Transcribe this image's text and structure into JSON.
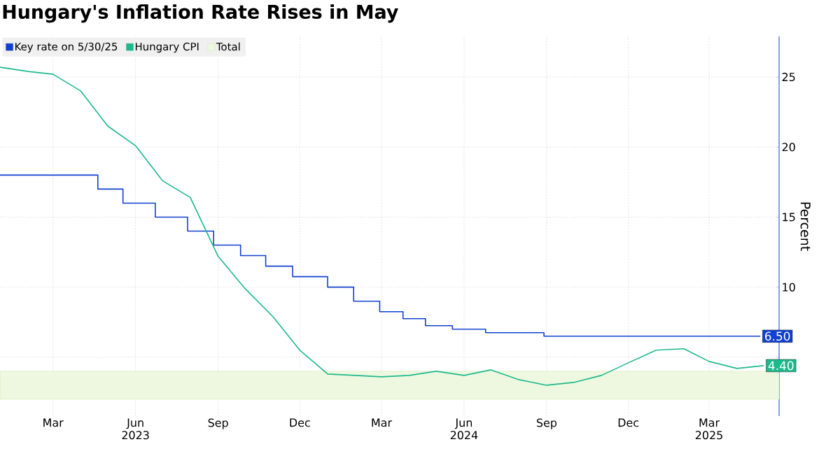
{
  "chart_data": {
    "type": "line",
    "title": "Hungary's Inflation Rate Rises in May",
    "ylabel": "Percent",
    "xlim": [
      "2023-01-01",
      "2025-05-18"
    ],
    "xticks": [
      {
        "value": "2023-03-01",
        "label": "Mar"
      },
      {
        "value": "2023-06-01",
        "label": "Jun\n2023"
      },
      {
        "value": "2023-09-01",
        "label": "Sep"
      },
      {
        "value": "2023-12-01",
        "label": "Dec"
      },
      {
        "value": "2024-03-01",
        "label": "Mar"
      },
      {
        "value": "2024-06-01",
        "label": "Jun\n2024"
      },
      {
        "value": "2024-09-01",
        "label": "Sep"
      },
      {
        "value": "2024-12-01",
        "label": "Dec"
      },
      {
        "value": "2025-03-01",
        "label": "Mar\n2025"
      }
    ],
    "ylim": [
      0.8,
      27.9
    ],
    "yticks": [
      {
        "value": 5,
        "label": null
      },
      10,
      15,
      20,
      25
    ],
    "grid": true,
    "legend": "top left",
    "bands": [
      {
        "axis": "y",
        "from": 2,
        "to": 4,
        "label": "Total",
        "color": "#eef8e0"
      }
    ],
    "series": [
      {
        "name": "Key rate on 5/30/25",
        "type": "step",
        "color": "#1040d0",
        "x": [
          "2023-01-01",
          "2023-04-20",
          "2023-05-18",
          "2023-06-23",
          "2023-07-29",
          "2023-08-27",
          "2023-09-26",
          "2023-10-24",
          "2023-11-23",
          "2024-01-01",
          "2024-01-30",
          "2024-02-28",
          "2024-03-25",
          "2024-04-19",
          "2024-05-19",
          "2024-06-25",
          "2024-08-29",
          "2025-04-27"
        ],
        "values": [
          18,
          17,
          16,
          15,
          14,
          13,
          12.25,
          11.5,
          10.75,
          10,
          9,
          8.25,
          7.75,
          7.25,
          7,
          6.75,
          6.5,
          6.5
        ],
        "value_labels": [
          null,
          null,
          null,
          null,
          null,
          null,
          null,
          null,
          null,
          null,
          null,
          null,
          null,
          null,
          null,
          null,
          null,
          "6.50"
        ]
      },
      {
        "name": "Hungary CPI",
        "color": "#1db98c",
        "x": [
          "2023-01-01",
          "2023-02-01",
          "2023-03-01",
          "2023-04-01",
          "2023-05-01",
          "2023-06-01",
          "2023-07-01",
          "2023-08-01",
          "2023-09-01",
          "2023-10-01",
          "2023-11-01",
          "2023-12-01",
          "2024-01-01",
          "2024-02-01",
          "2024-03-01",
          "2024-04-01",
          "2024-05-01",
          "2024-06-01",
          "2024-07-01",
          "2024-08-01",
          "2024-09-01",
          "2024-10-01",
          "2024-11-01",
          "2024-12-01",
          "2025-01-01",
          "2025-02-01",
          "2025-03-01",
          "2025-04-01",
          "2025-05-01"
        ],
        "values": [
          25.7,
          25.4,
          25.2,
          24.0,
          21.5,
          20.1,
          17.6,
          16.4,
          12.2,
          9.9,
          7.9,
          5.5,
          3.8,
          3.7,
          3.6,
          3.7,
          4.0,
          3.7,
          4.1,
          3.4,
          3.0,
          3.2,
          3.7,
          4.6,
          5.5,
          5.6,
          4.7,
          4.2,
          4.4
        ],
        "value_labels": [
          null,
          null,
          null,
          null,
          null,
          null,
          null,
          null,
          null,
          null,
          null,
          null,
          null,
          null,
          null,
          null,
          null,
          null,
          null,
          null,
          null,
          null,
          null,
          null,
          null,
          null,
          null,
          null,
          "4.40"
        ]
      }
    ]
  }
}
